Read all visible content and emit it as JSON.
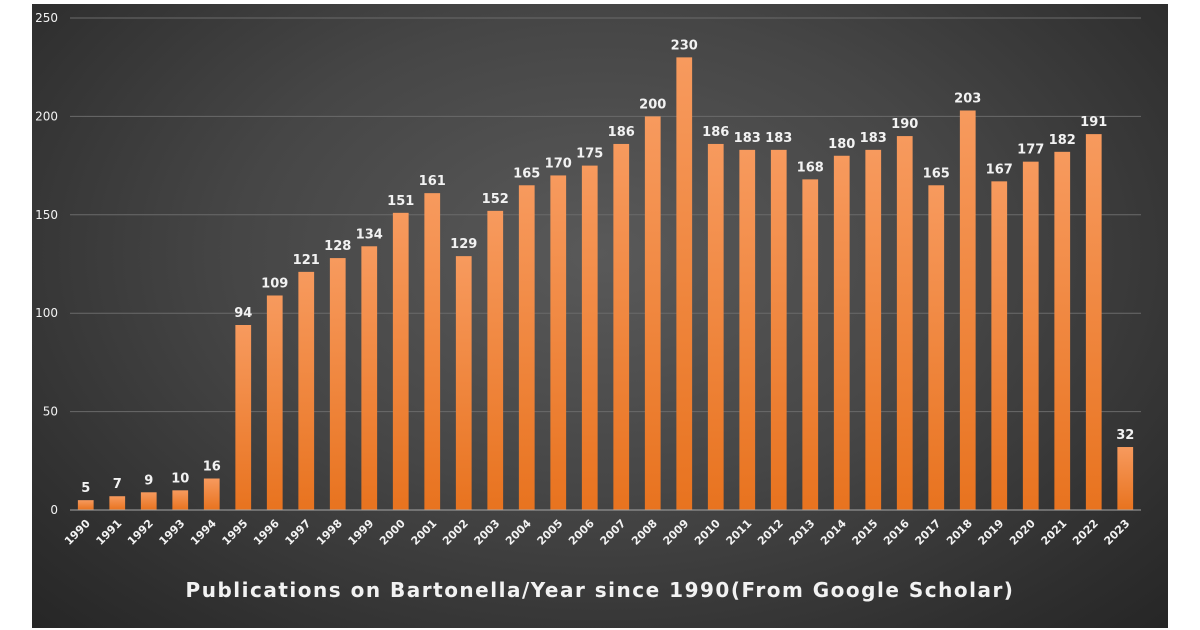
{
  "chart_data": {
    "type": "bar",
    "title": "Publications on Bartonella/Year since 1990(From Google Scholar)",
    "xlabel": "",
    "ylabel": "",
    "ylim": [
      0,
      250
    ],
    "yticks": [
      0,
      50,
      100,
      150,
      200,
      250
    ],
    "grid": true,
    "legend": "none",
    "categories": [
      "1990",
      "1991",
      "1992",
      "1993",
      "1994",
      "1995",
      "1996",
      "1997",
      "1998",
      "1999",
      "2000",
      "2001",
      "2002",
      "2003",
      "2004",
      "2005",
      "2006",
      "2007",
      "2008",
      "2009",
      "2010",
      "2011",
      "2012",
      "2013",
      "2014",
      "2015",
      "2016",
      "2017",
      "2018",
      "2019",
      "2020",
      "2021",
      "2022",
      "2023"
    ],
    "values": [
      5,
      7,
      9,
      10,
      16,
      94,
      109,
      121,
      128,
      134,
      151,
      161,
      129,
      152,
      165,
      170,
      175,
      186,
      200,
      230,
      186,
      183,
      183,
      168,
      180,
      183,
      190,
      165,
      203,
      167,
      177,
      182,
      191,
      32
    ],
    "colors": {
      "bar_top": "#f79a5e",
      "bar_bottom": "#e8731f",
      "text": "#f2f2f2",
      "grid": "#6a6a6a",
      "axis": "#a6a6a6"
    }
  }
}
